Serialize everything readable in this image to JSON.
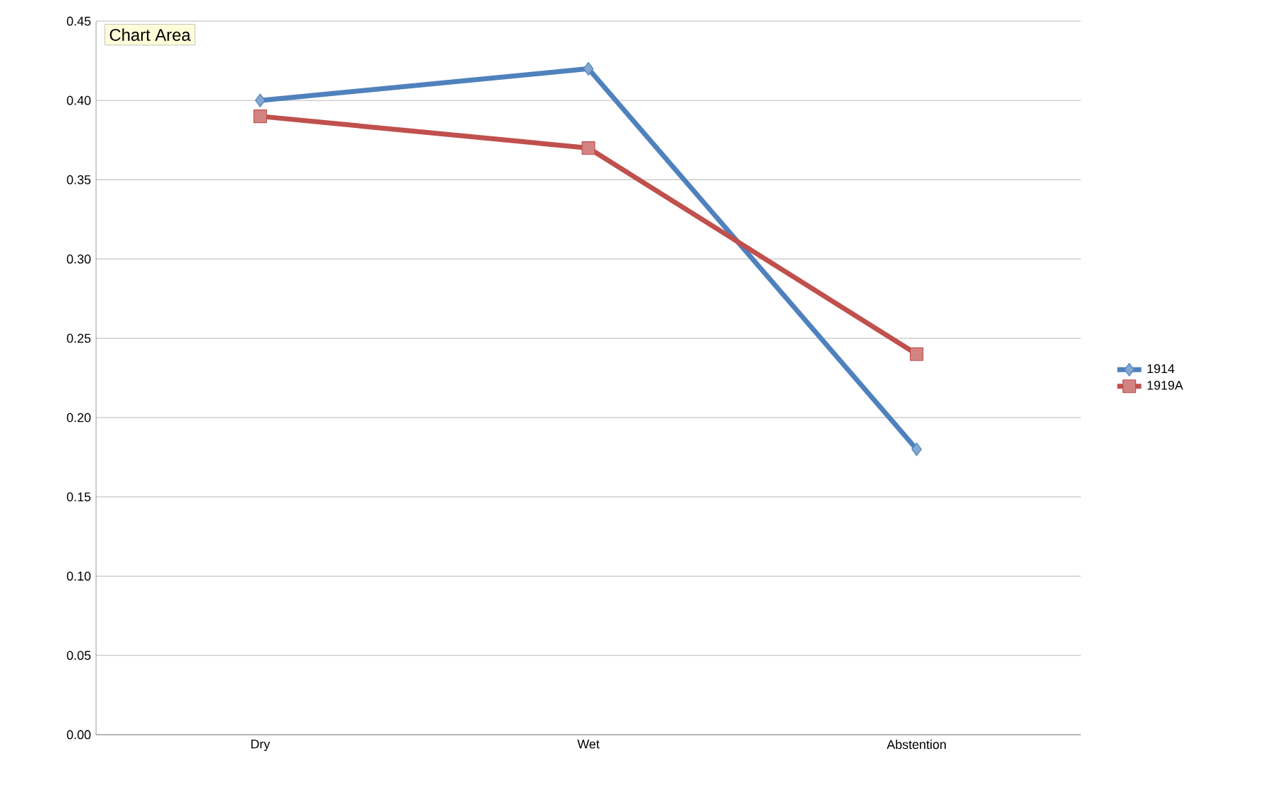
{
  "chart_data": {
    "type": "line",
    "categories": [
      "Dry",
      "Wet",
      "Abstention"
    ],
    "series": [
      {
        "name": "1914",
        "color": "#4f81bd",
        "marker": "diamond",
        "values": [
          0.4,
          0.42,
          0.18
        ]
      },
      {
        "name": "1919A",
        "color": "#c0504d",
        "marker": "square",
        "values": [
          0.39,
          0.37,
          0.24
        ]
      }
    ],
    "ylim": [
      0,
      0.45
    ],
    "yticks": [
      {
        "value": 0,
        "label": "0.00"
      },
      {
        "value": 0.05,
        "label": "0.05"
      },
      {
        "value": 0.1,
        "label": "0.10"
      },
      {
        "value": 0.15,
        "label": "0.15"
      },
      {
        "value": 0.2,
        "label": "0.20"
      },
      {
        "value": 0.25,
        "label": "0.25"
      },
      {
        "value": 0.3,
        "label": "0.30"
      },
      {
        "value": 0.35,
        "label": "0.35"
      },
      {
        "value": 0.4,
        "label": "0.40"
      },
      {
        "value": 0.45,
        "label": "0.45"
      }
    ],
    "grid": "y",
    "legend": "right",
    "line_style": "solid",
    "annotations": [
      "Chart Area"
    ]
  }
}
